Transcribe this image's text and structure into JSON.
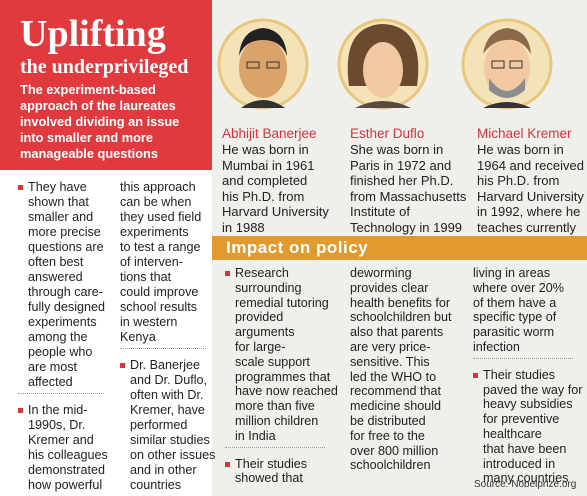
{
  "header": {
    "title": "Uplifting",
    "subtitle": "the underprivileged",
    "description": [
      "The experiment-based",
      "approach of the laureates",
      "involved dividing an issue",
      "into smaller and more",
      "manageable questions"
    ]
  },
  "left_columns": [
    [
      [
        "They have",
        "shown that",
        "smaller and",
        "more precise",
        "questions are",
        "often best",
        "answered",
        "through care-",
        "fully designed",
        "experiments",
        "among the",
        "people who",
        "are most",
        "affected"
      ],
      [
        "In the mid-",
        "1990s, Dr.",
        "Kremer and",
        "his colleagues",
        "demonstrated",
        "how powerful"
      ]
    ],
    [
      [
        "this approach",
        "can be when",
        "they used field",
        "experiments",
        "to test a range",
        "of interven-",
        "tions that",
        "could improve",
        "school results",
        "in western",
        "Kenya"
      ],
      [
        "Dr. Banerjee",
        "and Dr. Duflo,",
        "often with Dr.",
        "Kremer, have",
        "performed",
        "similar studies",
        "on other issues",
        "and in other",
        "countries"
      ]
    ]
  ],
  "laureates": [
    {
      "name": "Abhijit Banerjee",
      "bio": [
        "He was born in",
        "Mumbai in 1961",
        "and completed",
        "his Ph.D. from",
        "Harvard University",
        "in 1988"
      ]
    },
    {
      "name": "Esther Duflo",
      "bio": [
        "She was born in",
        "Paris in 1972 and",
        "finished her Ph.D.",
        "from Massachusetts",
        "Institute of",
        "Technology in 1999"
      ]
    },
    {
      "name": "Michael Kremer",
      "bio": [
        "He was born in",
        "1964 and received",
        "his Ph.D. from",
        "Harvard University",
        "in 1992, where he",
        "teaches currently"
      ]
    }
  ],
  "impact": {
    "title": "Impact on policy",
    "columns": [
      [
        [
          "Research",
          "surrounding",
          "remedial tutoring",
          "provided",
          "arguments",
          "for large-",
          "scale support",
          "programmes that",
          "have now reached",
          "more than five",
          "million children",
          "in India"
        ],
        [
          "Their studies",
          "showed that"
        ]
      ],
      [
        [
          "deworming",
          "provides clear",
          "health benefits for",
          "schoolchildren but",
          "also that parents",
          "are very price-",
          "sensitive. This",
          "led the WHO to",
          "recommend that",
          "medicine should",
          "be distributed",
          "for free to the",
          "over 800 million",
          "schoolchildren"
        ]
      ],
      [
        [
          "living in areas",
          "where over 20%",
          "of them have a",
          "specific type of",
          "parasitic worm",
          "infection"
        ],
        [
          "Their studies",
          "paved the way for",
          "heavy subsidies",
          "for preventive",
          "healthcare",
          "that have been",
          "introduced in",
          "many countries"
        ]
      ]
    ]
  },
  "source": "Source: Nobelprize.org"
}
